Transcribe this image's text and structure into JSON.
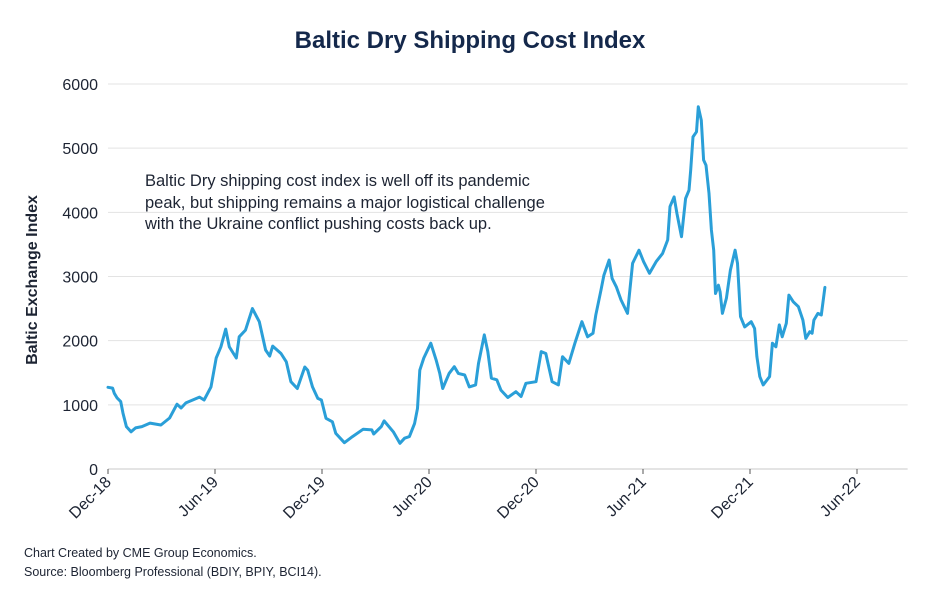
{
  "chart_data": {
    "type": "line",
    "title": "Baltic Dry Shipping Cost Index",
    "xlabel": "",
    "ylabel": "Baltic Exchange Index",
    "ylim": [
      0,
      6000
    ],
    "xlim": [
      "2018-12-01",
      "2022-08-27"
    ],
    "yticks": [
      "0",
      "1000",
      "2000",
      "3000",
      "4000",
      "5000",
      "6000"
    ],
    "xticks": [
      {
        "date": "2018-12-01",
        "label": "Dec-18"
      },
      {
        "date": "2019-06-01",
        "label": "Jun-19"
      },
      {
        "date": "2019-12-01",
        "label": "Dec-19"
      },
      {
        "date": "2020-06-01",
        "label": "Jun-20"
      },
      {
        "date": "2020-12-01",
        "label": "Dec-20"
      },
      {
        "date": "2021-06-01",
        "label": "Jun-21"
      },
      {
        "date": "2021-12-01",
        "label": "Dec-21"
      },
      {
        "date": "2022-06-01",
        "label": "Jun-22"
      }
    ],
    "grid": "horizontal",
    "line_color": "#2a9fd8",
    "annotation": [
      "Baltic Dry shipping cost index is well off its pandemic",
      "peak, but shipping remains a major logistical challenge",
      "with the Ukraine conflict pushing costs back up."
    ],
    "series": [
      {
        "x": [
          "2018-12-01",
          "2018-12-09",
          "2018-12-12",
          "2018-12-17",
          "2018-12-23",
          "2018-12-27",
          "2019-01-02",
          "2019-01-10",
          "2019-01-18",
          "2019-01-29",
          "2019-02-11",
          "2019-02-28",
          "2019-03-15",
          "2019-03-28",
          "2019-04-04",
          "2019-04-12",
          "2019-05-05",
          "2019-05-13",
          "2019-05-25",
          "2019-06-03",
          "2019-06-11",
          "2019-06-19",
          "2019-06-25",
          "2019-07-07",
          "2019-07-12",
          "2019-07-23",
          "2019-08-04",
          "2019-08-16",
          "2019-08-27",
          "2019-09-03",
          "2019-09-08",
          "2019-09-22",
          "2019-10-01",
          "2019-10-09",
          "2019-10-20",
          "2019-11-02",
          "2019-11-07",
          "2019-11-15",
          "2019-11-24",
          "2019-11-30",
          "2019-12-08",
          "2019-12-19",
          "2019-12-25",
          "2020-01-09",
          "2020-01-23",
          "2020-02-10",
          "2020-02-24",
          "2020-02-27",
          "2020-03-11",
          "2020-03-16",
          "2020-04-01",
          "2020-04-12",
          "2020-04-20",
          "2020-04-28",
          "2020-05-07",
          "2020-05-12",
          "2020-05-16",
          "2020-05-23",
          "2020-06-04",
          "2020-06-13",
          "2020-06-19",
          "2020-06-24",
          "2020-07-05",
          "2020-07-14",
          "2020-07-21",
          "2020-08-01",
          "2020-08-09",
          "2020-08-20",
          "2020-08-25",
          "2020-09-04",
          "2020-09-10",
          "2020-09-16",
          "2020-09-25",
          "2020-10-02",
          "2020-10-14",
          "2020-10-28",
          "2020-11-06",
          "2020-11-14",
          "2020-12-01",
          "2020-12-10",
          "2020-12-18",
          "2020-12-29",
          "2021-01-09",
          "2021-01-16",
          "2021-01-27",
          "2021-02-06",
          "2021-02-17",
          "2021-02-26",
          "2021-03-07",
          "2021-03-12",
          "2021-03-21",
          "2021-03-26",
          "2021-04-04",
          "2021-04-09",
          "2021-04-16",
          "2021-04-24",
          "2021-05-05",
          "2021-05-14",
          "2021-05-25",
          "2021-06-02",
          "2021-06-12",
          "2021-06-23",
          "2021-07-04",
          "2021-07-13",
          "2021-07-17",
          "2021-07-24",
          "2021-07-29",
          "2021-08-06",
          "2021-08-13",
          "2021-08-19",
          "2021-08-22",
          "2021-08-26",
          "2021-09-01",
          "2021-09-04",
          "2021-09-09",
          "2021-09-13",
          "2021-09-17",
          "2021-09-22",
          "2021-09-26",
          "2021-09-30",
          "2021-10-03",
          "2021-10-08",
          "2021-10-11",
          "2021-10-15",
          "2021-10-22",
          "2021-10-29",
          "2021-11-06",
          "2021-11-10",
          "2021-11-15",
          "2021-11-22",
          "2021-12-03",
          "2021-12-09",
          "2021-12-13",
          "2021-12-18",
          "2021-12-24",
          "2022-01-04",
          "2022-01-09",
          "2022-01-15",
          "2022-01-21",
          "2022-01-26",
          "2022-02-02",
          "2022-02-06",
          "2022-02-13",
          "2022-02-21",
          "2022-02-28",
          "2022-03-05",
          "2022-03-12",
          "2022-03-16",
          "2022-03-19",
          "2022-03-26",
          "2022-04-01",
          "2022-04-07"
        ],
        "y": [
          1273,
          1260,
          1180,
          1105,
          1050,
          870,
          660,
          580,
          640,
          660,
          715,
          685,
          795,
          1010,
          950,
          1030,
          1120,
          1075,
          1280,
          1730,
          1905,
          2180,
          1905,
          1730,
          2060,
          2165,
          2500,
          2295,
          1855,
          1760,
          1915,
          1800,
          1670,
          1360,
          1255,
          1590,
          1540,
          1280,
          1100,
          1075,
          790,
          735,
          555,
          410,
          505,
          620,
          610,
          545,
          660,
          750,
          580,
          400,
          480,
          505,
          710,
          945,
          1540,
          1730,
          1960,
          1700,
          1495,
          1255,
          1490,
          1595,
          1490,
          1465,
          1280,
          1310,
          1645,
          2090,
          1830,
          1415,
          1390,
          1230,
          1115,
          1205,
          1130,
          1335,
          1360,
          1830,
          1800,
          1360,
          1310,
          1750,
          1645,
          1960,
          2295,
          2060,
          2115,
          2400,
          2790,
          3020,
          3255,
          2970,
          2840,
          2635,
          2425,
          3205,
          3410,
          3230,
          3050,
          3230,
          3360,
          3570,
          4090,
          4240,
          3985,
          3620,
          4215,
          4345,
          4660,
          5175,
          5255,
          5645,
          5435,
          4815,
          4735,
          4295,
          3725,
          3410,
          2735,
          2865,
          2760,
          2425,
          2660,
          3100,
          3410,
          3205,
          2375,
          2215,
          2295,
          2190,
          1750,
          1440,
          1310,
          1440,
          1960,
          1905,
          2245,
          2060,
          2270,
          2710,
          2605,
          2530,
          2320,
          2035,
          2140,
          2115,
          2320,
          2425,
          2400,
          2830
        ]
      }
    ]
  },
  "footer": {
    "line1": "Chart Created by CME Group Economics.",
    "line2": "Source: Bloomberg Professional (BDIY, BPIY, BCI14)."
  }
}
